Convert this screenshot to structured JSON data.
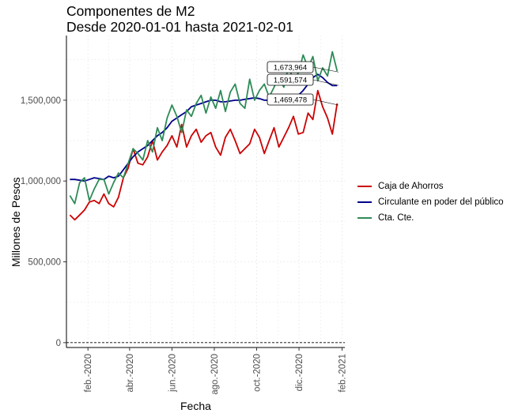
{
  "chart_data": {
    "type": "line",
    "title": "Componentes de M2",
    "subtitle": "Desde 2020-01-01 hasta 2021-02-01",
    "xlabel": "Fecha",
    "ylabel": "Millones de Pesos",
    "xlim": [
      "2020-01-01",
      "2021-02-05"
    ],
    "ylim": [
      -30000,
      1900000
    ],
    "x_ticks": [
      {
        "date": "2020-02-01",
        "label": "feb.-2020"
      },
      {
        "date": "2020-04-01",
        "label": "abr.-2020"
      },
      {
        "date": "2020-06-01",
        "label": "jun.-2020"
      },
      {
        "date": "2020-08-01",
        "label": "ago.-2020"
      },
      {
        "date": "2020-10-01",
        "label": "oct.-2020"
      },
      {
        "date": "2020-12-01",
        "label": "dic.-2020"
      },
      {
        "date": "2021-02-01",
        "label": "feb.-2021"
      }
    ],
    "y_ticks": [
      {
        "value": 0,
        "label": "0"
      },
      {
        "value": 500000,
        "label": "500,000"
      },
      {
        "value": 1000000,
        "label": "1,000,000"
      },
      {
        "value": 1500000,
        "label": "1,500,000"
      }
    ],
    "reference_line": {
      "y": 0,
      "style": "dashed"
    },
    "grid": true,
    "legend_position": "right",
    "series": [
      {
        "name": "Caja de Ahorros",
        "color": "#CC0000",
        "points": [
          [
            "2020-01-06",
            790000
          ],
          [
            "2020-01-13",
            760000
          ],
          [
            "2020-01-20",
            790000
          ],
          [
            "2020-01-27",
            820000
          ],
          [
            "2020-02-03",
            870000
          ],
          [
            "2020-02-10",
            880000
          ],
          [
            "2020-02-17",
            860000
          ],
          [
            "2020-02-24",
            920000
          ],
          [
            "2020-03-02",
            860000
          ],
          [
            "2020-03-09",
            840000
          ],
          [
            "2020-03-16",
            900000
          ],
          [
            "2020-03-23",
            1020000
          ],
          [
            "2020-03-30",
            1080000
          ],
          [
            "2020-04-06",
            1200000
          ],
          [
            "2020-04-13",
            1110000
          ],
          [
            "2020-04-20",
            1100000
          ],
          [
            "2020-04-27",
            1150000
          ],
          [
            "2020-05-04",
            1250000
          ],
          [
            "2020-05-11",
            1130000
          ],
          [
            "2020-05-18",
            1180000
          ],
          [
            "2020-05-25",
            1220000
          ],
          [
            "2020-06-01",
            1280000
          ],
          [
            "2020-06-08",
            1210000
          ],
          [
            "2020-06-15",
            1350000
          ],
          [
            "2020-06-22",
            1210000
          ],
          [
            "2020-06-29",
            1280000
          ],
          [
            "2020-07-06",
            1320000
          ],
          [
            "2020-07-13",
            1240000
          ],
          [
            "2020-07-20",
            1280000
          ],
          [
            "2020-07-27",
            1300000
          ],
          [
            "2020-08-03",
            1210000
          ],
          [
            "2020-08-10",
            1160000
          ],
          [
            "2020-08-17",
            1270000
          ],
          [
            "2020-08-24",
            1320000
          ],
          [
            "2020-08-31",
            1250000
          ],
          [
            "2020-09-07",
            1170000
          ],
          [
            "2020-09-14",
            1200000
          ],
          [
            "2020-09-21",
            1230000
          ],
          [
            "2020-09-28",
            1320000
          ],
          [
            "2020-10-05",
            1270000
          ],
          [
            "2020-10-12",
            1170000
          ],
          [
            "2020-10-19",
            1250000
          ],
          [
            "2020-10-26",
            1330000
          ],
          [
            "2020-11-02",
            1210000
          ],
          [
            "2020-11-09",
            1270000
          ],
          [
            "2020-11-16",
            1330000
          ],
          [
            "2020-11-23",
            1400000
          ],
          [
            "2020-11-30",
            1290000
          ],
          [
            "2020-12-07",
            1300000
          ],
          [
            "2020-12-14",
            1420000
          ],
          [
            "2020-12-21",
            1380000
          ],
          [
            "2020-12-28",
            1560000
          ],
          [
            "2021-01-04",
            1460000
          ],
          [
            "2021-01-11",
            1390000
          ],
          [
            "2021-01-18",
            1290000
          ],
          [
            "2021-01-25",
            1480000
          ]
        ]
      },
      {
        "name": "Circulante en poder del público",
        "color": "#00008B",
        "points": [
          [
            "2020-01-06",
            1010000
          ],
          [
            "2020-01-13",
            1010000
          ],
          [
            "2020-01-20",
            1005000
          ],
          [
            "2020-01-27",
            1000000
          ],
          [
            "2020-02-03",
            1010000
          ],
          [
            "2020-02-10",
            1020000
          ],
          [
            "2020-02-17",
            1015000
          ],
          [
            "2020-02-24",
            1010000
          ],
          [
            "2020-03-02",
            1030000
          ],
          [
            "2020-03-09",
            1020000
          ],
          [
            "2020-03-16",
            1030000
          ],
          [
            "2020-03-23",
            1070000
          ],
          [
            "2020-03-30",
            1110000
          ],
          [
            "2020-04-06",
            1150000
          ],
          [
            "2020-04-13",
            1180000
          ],
          [
            "2020-04-20",
            1200000
          ],
          [
            "2020-04-27",
            1220000
          ],
          [
            "2020-05-04",
            1250000
          ],
          [
            "2020-05-11",
            1280000
          ],
          [
            "2020-05-18",
            1300000
          ],
          [
            "2020-05-25",
            1330000
          ],
          [
            "2020-06-01",
            1370000
          ],
          [
            "2020-06-08",
            1390000
          ],
          [
            "2020-06-15",
            1410000
          ],
          [
            "2020-06-22",
            1430000
          ],
          [
            "2020-06-29",
            1460000
          ],
          [
            "2020-07-06",
            1470000
          ],
          [
            "2020-07-13",
            1480000
          ],
          [
            "2020-07-20",
            1490000
          ],
          [
            "2020-07-27",
            1500000
          ],
          [
            "2020-08-03",
            1500000
          ],
          [
            "2020-08-10",
            1490000
          ],
          [
            "2020-08-17",
            1490000
          ],
          [
            "2020-08-24",
            1495000
          ],
          [
            "2020-08-31",
            1500000
          ],
          [
            "2020-09-07",
            1500000
          ],
          [
            "2020-09-14",
            1505000
          ],
          [
            "2020-09-21",
            1510000
          ],
          [
            "2020-09-28",
            1515000
          ],
          [
            "2020-10-05",
            1510000
          ],
          [
            "2020-10-12",
            1500000
          ],
          [
            "2020-10-19",
            1500000
          ],
          [
            "2020-10-26",
            1505000
          ],
          [
            "2020-11-02",
            1500000
          ],
          [
            "2020-11-09",
            1495000
          ],
          [
            "2020-11-16",
            1500000
          ],
          [
            "2020-11-23",
            1515000
          ],
          [
            "2020-11-30",
            1530000
          ],
          [
            "2020-12-07",
            1560000
          ],
          [
            "2020-12-14",
            1600000
          ],
          [
            "2020-12-21",
            1640000
          ],
          [
            "2020-12-28",
            1660000
          ],
          [
            "2021-01-04",
            1640000
          ],
          [
            "2021-01-11",
            1610000
          ],
          [
            "2021-01-18",
            1590000
          ],
          [
            "2021-01-25",
            1590000
          ]
        ]
      },
      {
        "name": "Cta. Cte.",
        "color": "#2E8B57",
        "points": [
          [
            "2020-01-06",
            910000
          ],
          [
            "2020-01-13",
            860000
          ],
          [
            "2020-01-20",
            990000
          ],
          [
            "2020-01-27",
            1020000
          ],
          [
            "2020-02-03",
            880000
          ],
          [
            "2020-02-10",
            950000
          ],
          [
            "2020-02-17",
            1010000
          ],
          [
            "2020-02-24",
            1010000
          ],
          [
            "2020-03-02",
            920000
          ],
          [
            "2020-03-09",
            990000
          ],
          [
            "2020-03-16",
            1050000
          ],
          [
            "2020-03-23",
            1020000
          ],
          [
            "2020-03-30",
            1110000
          ],
          [
            "2020-04-06",
            1200000
          ],
          [
            "2020-04-13",
            1170000
          ],
          [
            "2020-04-20",
            1130000
          ],
          [
            "2020-04-27",
            1250000
          ],
          [
            "2020-05-04",
            1180000
          ],
          [
            "2020-05-11",
            1330000
          ],
          [
            "2020-05-18",
            1250000
          ],
          [
            "2020-05-25",
            1390000
          ],
          [
            "2020-06-01",
            1470000
          ],
          [
            "2020-06-08",
            1400000
          ],
          [
            "2020-06-15",
            1300000
          ],
          [
            "2020-06-22",
            1440000
          ],
          [
            "2020-06-29",
            1400000
          ],
          [
            "2020-07-06",
            1480000
          ],
          [
            "2020-07-13",
            1530000
          ],
          [
            "2020-07-20",
            1420000
          ],
          [
            "2020-07-27",
            1520000
          ],
          [
            "2020-08-03",
            1450000
          ],
          [
            "2020-08-10",
            1560000
          ],
          [
            "2020-08-17",
            1430000
          ],
          [
            "2020-08-24",
            1550000
          ],
          [
            "2020-08-31",
            1600000
          ],
          [
            "2020-09-07",
            1480000
          ],
          [
            "2020-09-14",
            1450000
          ],
          [
            "2020-09-21",
            1630000
          ],
          [
            "2020-09-28",
            1500000
          ],
          [
            "2020-10-05",
            1560000
          ],
          [
            "2020-10-12",
            1600000
          ],
          [
            "2020-10-19",
            1520000
          ],
          [
            "2020-10-26",
            1580000
          ],
          [
            "2020-11-02",
            1650000
          ],
          [
            "2020-11-09",
            1580000
          ],
          [
            "2020-11-16",
            1710000
          ],
          [
            "2020-11-23",
            1620000
          ],
          [
            "2020-11-30",
            1670000
          ],
          [
            "2020-12-07",
            1780000
          ],
          [
            "2020-12-14",
            1700000
          ],
          [
            "2020-12-21",
            1770000
          ],
          [
            "2020-12-28",
            1620000
          ],
          [
            "2021-01-04",
            1700000
          ],
          [
            "2021-01-11",
            1650000
          ],
          [
            "2021-01-18",
            1800000
          ],
          [
            "2021-01-25",
            1680000
          ]
        ]
      }
    ],
    "annotations": [
      {
        "date": "2021-01-27",
        "value": 1673964,
        "label": "1,673,964"
      },
      {
        "date": "2021-01-27",
        "value": 1591574,
        "label": "1,591,574"
      },
      {
        "date": "2021-01-27",
        "value": 1469478,
        "label": "1,469,478"
      }
    ]
  }
}
